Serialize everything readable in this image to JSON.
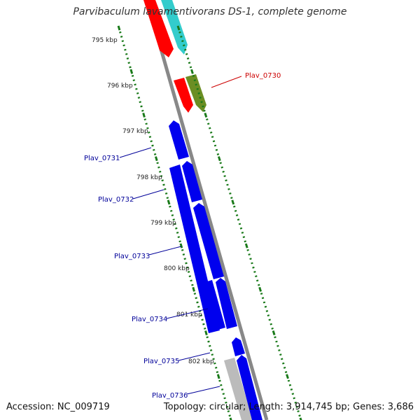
{
  "title": "Parvibaculum lavamentivorans DS-1, complete genome",
  "accession": "Accession: NC_009719",
  "stats": "Topology: circular; Length: 3,914,745 bp; Genes: 3,686",
  "scale_labels": [
    "795 kbp",
    "796 kbp",
    "797 kbp",
    "798 kbp",
    "799 kbp",
    "800 kbp",
    "801 kbp",
    "802 kbp"
  ],
  "colors": {
    "backbone": "#888888",
    "tick": "#1a7a1a",
    "blue_gene": "#0000ee",
    "red_gene": "#ff0000",
    "cyan_gene": "#33cccc",
    "olive_gene": "#6b8e23",
    "grey_gene": "#bbbbbb",
    "label_blue": "#000099",
    "label_red": "#cc0000"
  },
  "gene_labels": [
    {
      "name": "Plav_0730",
      "color": "#cc0000"
    },
    {
      "name": "Plav_0731",
      "color": "#000099"
    },
    {
      "name": "Plav_0732",
      "color": "#000099"
    },
    {
      "name": "Plav_0733",
      "color": "#000099"
    },
    {
      "name": "Plav_0734",
      "color": "#000099"
    },
    {
      "name": "Plav_0735",
      "color": "#000099"
    },
    {
      "name": "Plav_0736",
      "color": "#000099"
    }
  ]
}
